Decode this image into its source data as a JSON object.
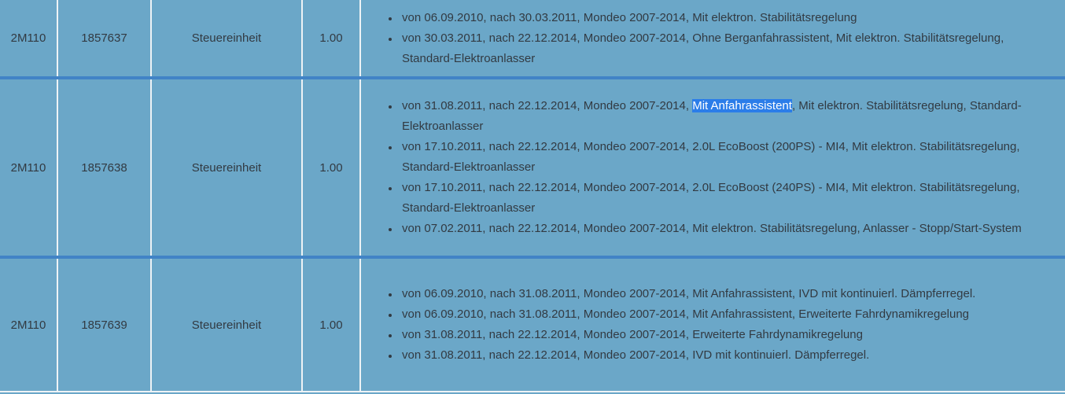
{
  "table": {
    "columns": [
      "code",
      "part_number",
      "description",
      "quantity",
      "applications"
    ],
    "rows": [
      {
        "code": "2M110",
        "part_number": "1857637",
        "description": "Steuereinheit",
        "quantity": "1.00",
        "applications": [
          "von 06.09.2010, nach 30.03.2011, Mondeo 2007-2014, Mit elektron. Stabilitätsregelung",
          "von 30.03.2011, nach 22.12.2014, Mondeo 2007-2014, Ohne Berganfahrassistent, Mit elektron. Stabilitätsregelung, Standard-Elektroanlasser"
        ]
      },
      {
        "code": "2M110",
        "part_number": "1857638",
        "description": "Steuereinheit",
        "quantity": "1.00",
        "applications": [
          {
            "pre": "von 31.08.2011, nach 22.12.2014, Mondeo 2007-2014, ",
            "match": "Mit Anfahrassistent",
            "post": ", Mit elektron. Stabilitätsregelung, Standard-Elektroanlasser"
          },
          "von 17.10.2011, nach 22.12.2014, Mondeo 2007-2014, 2.0L EcoBoost (200PS) - MI4, Mit elektron. Stabilitätsregelung, Standard-Elektroanlasser",
          "von 17.10.2011, nach 22.12.2014, Mondeo 2007-2014, 2.0L EcoBoost (240PS) - MI4, Mit elektron. Stabilitätsregelung, Standard-Elektroanlasser",
          "von 07.02.2011, nach 22.12.2014, Mondeo 2007-2014, Mit elektron. Stabilitätsregelung, Anlasser - Stopp/Start-System"
        ]
      },
      {
        "code": "2M110",
        "part_number": "1857639",
        "description": "Steuereinheit",
        "quantity": "1.00",
        "applications": [
          "von 06.09.2010, nach 31.08.2011, Mondeo 2007-2014, Mit Anfahrassistent, IVD mit kontinuierl. Dämpferregel.",
          "von 06.09.2010, nach 31.08.2011, Mondeo 2007-2014, Mit Anfahrassistent, Erweiterte Fahrdynamikregelung",
          "von 31.08.2011, nach 22.12.2014, Mondeo 2007-2014, Erweiterte Fahrdynamikregelung",
          "von 31.08.2011, nach 22.12.2014, Mondeo 2007-2014, IVD mit kontinuierl. Dämpferregel."
        ]
      }
    ]
  },
  "find_highlight": {
    "term": "Mit Anfahrassistent",
    "background_color": "#2b7de9",
    "text_color": "#ffffff"
  },
  "colors": {
    "table_background": "#6ba7c8",
    "row_separator": "#4183c6",
    "cell_border": "#eef3f6",
    "text": "#323a42"
  }
}
